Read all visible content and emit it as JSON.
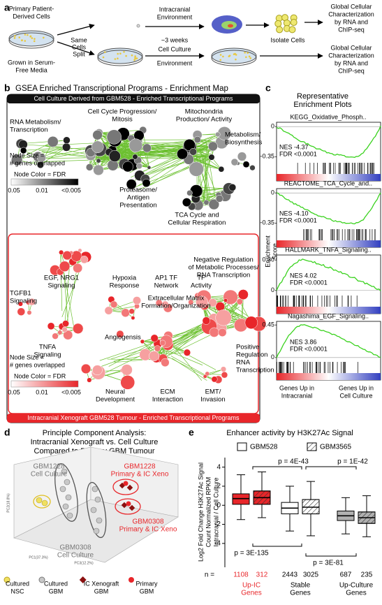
{
  "panel_a": {
    "label": "a",
    "source": [
      "Primary Patient-",
      "Derived Cells"
    ],
    "media": [
      "Grown in Serum-",
      "Free Media"
    ],
    "split": [
      "Same",
      "Cells",
      "Split"
    ],
    "ic_env": [
      "Intracranial",
      "Environment"
    ],
    "time": "~3 weeks",
    "cc_env": [
      "Cell Culture",
      "Environment"
    ],
    "isolate": "Isolate Cells",
    "characterization": [
      "Global Cellular",
      "Characterization",
      "by RNA and",
      "ChIP-seq"
    ]
  },
  "panel_b": {
    "label": "b",
    "title": "GSEA Enriched Transcriptional Programs - Enrichment Map",
    "top_header": "Cell Culture Derived from GBM528 - Enriched Transcriptional Programs",
    "bottom_footer": "Intracranial Xenograft GBM528 Tumour - Enriched Transcriptional Programs",
    "top_clusters": [
      [
        "RNA Metabolism/",
        "Transcription"
      ],
      [
        "Cell Cycle Progression/",
        "Mitosis"
      ],
      [
        "Mitochondria",
        "Production/ Activity"
      ],
      [
        "Metabolism/",
        "Biosynthesis"
      ],
      [
        "Proteasome/",
        "Antigen",
        "Presentation"
      ],
      [
        "TCA Cycle and",
        "Cellular Respiration"
      ]
    ],
    "bottom_clusters": [
      [
        "EGF, NRG1",
        "Signaling"
      ],
      [
        "Hypoxia",
        "Response"
      ],
      [
        "AP1 TF",
        "Network"
      ],
      [
        "TF",
        "Activity"
      ],
      [
        "Negative Regulation",
        "of Metabolic Processes/",
        "RNA Transcription"
      ],
      [
        "TGFB1",
        "Signaling"
      ],
      [
        "Extracellular Matrix",
        "Formation/Organization"
      ],
      [
        "Angiogensis"
      ],
      [
        "TNFA",
        "Signaling"
      ],
      [
        "Positive",
        "Regulation",
        "RNA",
        "Transcription"
      ],
      [
        "Neural",
        "Development"
      ],
      [
        "ECM",
        "Interaction"
      ],
      [
        "EMT/",
        "Invasion"
      ]
    ],
    "legend": {
      "size": [
        "Node Size =",
        "# genes overlapped"
      ],
      "color": "Node Color = FDR",
      "scale": [
        0.05,
        0.01,
        "<0.005"
      ]
    }
  },
  "panel_c": {
    "label": "c",
    "title": [
      "Representative",
      "Enrichment Plots"
    ],
    "y_label": [
      "Enrichment",
      "Score"
    ],
    "plots": [
      {
        "name": "KEGG_Oxidative_Phosph..",
        "ylim": [
          -0.42,
          0.05
        ],
        "yticks": [
          0,
          -0.35
        ],
        "nes": "NES -4.37",
        "fdr": "FDR <0.0001"
      },
      {
        "name": "REACTOME_TCA_Cycle_and..",
        "ylim": [
          -0.42,
          0.05
        ],
        "yticks": [
          0,
          -0.35
        ],
        "nes": "NES -4.10",
        "fdr": "FDR <0.0001"
      },
      {
        "name": "HALLMARK_TNFA_Signaling..",
        "ylim": [
          -0.05,
          0.35
        ],
        "yticks": [
          {
            "value": 0.3,
            "label": "0.30"
          },
          0
        ],
        "nes": "NES 4.02",
        "fdr": "FDR <0.0001"
      },
      {
        "name": "Nagashima_EGF_Signaling..",
        "ylim": [
          -0.06,
          0.5
        ],
        "yticks": [
          0.45,
          0
        ],
        "nes": "NES 3.86",
        "fdr": "FDR <0.0001"
      }
    ],
    "x_labels": [
      [
        "Genes Up in",
        "Intracranial"
      ],
      [
        "Genes Up in",
        "Cell Culture"
      ]
    ]
  },
  "panel_d": {
    "label": "d",
    "title": [
      "Principle Component Analysis:",
      "Intracranial Xenograft vs. Cell Culture",
      "Compared to Primary GBM Tumour"
    ],
    "groups": [
      [
        "GBM1228",
        "Cell Culture"
      ],
      [
        "GBM1228",
        "Primary & IC Xeno"
      ],
      [
        "GBM0308",
        "Primary & IC Xeno"
      ],
      [
        "GBM0308",
        "Cell Culture"
      ]
    ],
    "axes": [
      "PC1(37.3%)",
      "PC2(18.8%)",
      "PC3(12.2%)"
    ],
    "legend": [
      [
        "Cultured",
        "NSC"
      ],
      [
        "Cultured",
        "GBM"
      ],
      [
        "IC Xenograft",
        "GBM"
      ],
      [
        "Primary",
        "GBM"
      ]
    ]
  },
  "chart_data": {
    "type": "box",
    "label": "e",
    "title": "Enhancer activity by H3K27Ac Signal",
    "ylabel": [
      "Log2 Fold Change H3K27Ac Signal",
      "Count Normalized RPKM",
      "Intracranial / Cell Culture"
    ],
    "ylim": [
      -6.5,
      5
    ],
    "yticks": [
      4,
      2,
      0,
      -2,
      -4
    ],
    "categories": [
      [
        "Up-IC",
        "Genes"
      ],
      [
        "Stable",
        "Genes"
      ],
      [
        "Up-Culture",
        "Genes"
      ]
    ],
    "colors": [
      "#e8262a",
      "#ffffff",
      "#b0b0b0"
    ],
    "label_colors": [
      "#e8262a",
      "#000000",
      "#000000"
    ],
    "n_label": "n =",
    "series": [
      {
        "name": "GBM528",
        "hatch": false,
        "n": [
          1108,
          2443,
          687
        ],
        "median": [
          0.7,
          -0.3,
          -1.1
        ],
        "q1": [
          0.1,
          -0.9,
          -1.6
        ],
        "q3": [
          1.2,
          0.3,
          -0.6
        ],
        "whislo": [
          -1.5,
          -2.7,
          -3.0
        ],
        "whishi": [
          3.2,
          2.0,
          0.8
        ]
      },
      {
        "name": "GBM3565",
        "hatch": true,
        "n": [
          312,
          3025,
          235
        ],
        "median": [
          0.8,
          -0.2,
          -1.3
        ],
        "q1": [
          0.1,
          -0.9,
          -1.9
        ],
        "q3": [
          1.5,
          0.6,
          -0.7
        ],
        "whislo": [
          -1.3,
          -3.2,
          -3.3
        ],
        "whishi": [
          3.5,
          2.5,
          1.0
        ]
      }
    ],
    "annotations": [
      "p = 4E-43",
      "p = 1E-42",
      "p = 3E-135",
      "p = 3E-81"
    ]
  }
}
